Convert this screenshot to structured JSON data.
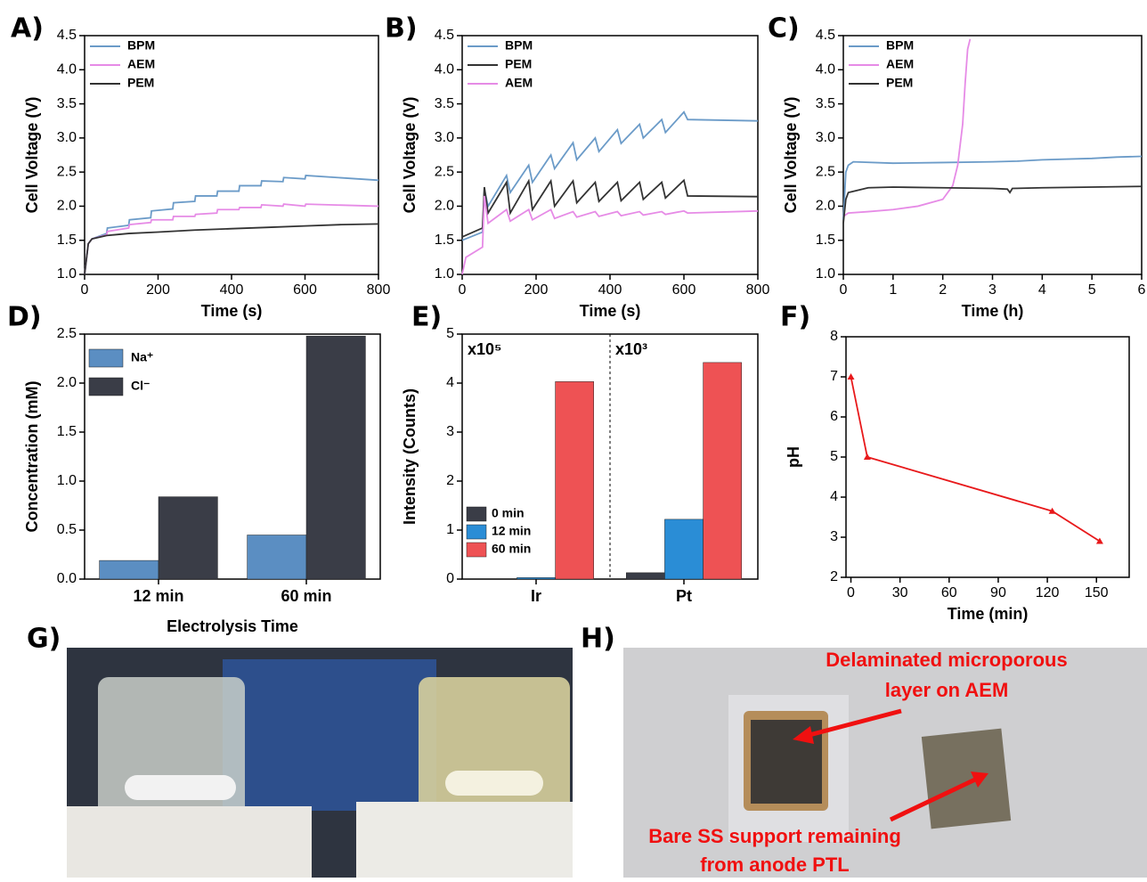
{
  "chart_data": [
    {
      "type": "line",
      "panel": "A)",
      "xlabel": "Time (s)",
      "ylabel": "Cell Voltage (V)",
      "xlim": [
        0,
        800
      ],
      "xticks": [
        0,
        200,
        400,
        600,
        800
      ],
      "ylim": [
        1.0,
        4.5
      ],
      "yticks": [
        {
          "value": 1,
          "label": "1.0"
        },
        1.5,
        {
          "value": 2,
          "label": "2.0"
        },
        2.5,
        {
          "value": 3,
          "label": "3.0"
        },
        3.5,
        {
          "value": 4,
          "label": "4.0"
        },
        4.5
      ],
      "legend": "upper left",
      "series": [
        {
          "name": "BPM",
          "color": "#6b9bc8",
          "x": [
            0,
            10,
            20,
            60,
            62,
            120,
            122,
            180,
            182,
            240,
            242,
            300,
            302,
            360,
            362,
            420,
            422,
            480,
            482,
            540,
            542,
            600,
            602,
            800
          ],
          "values": [
            1.0,
            1.45,
            1.52,
            1.6,
            1.68,
            1.72,
            1.8,
            1.83,
            1.93,
            1.96,
            2.05,
            2.07,
            2.15,
            2.15,
            2.22,
            2.22,
            2.3,
            2.3,
            2.37,
            2.36,
            2.42,
            2.4,
            2.45,
            2.38
          ]
        },
        {
          "name": "AEM",
          "color": "#e68be6",
          "x": [
            0,
            10,
            20,
            60,
            62,
            120,
            122,
            180,
            182,
            240,
            242,
            300,
            302,
            360,
            362,
            420,
            422,
            480,
            482,
            540,
            542,
            600,
            602,
            800
          ],
          "values": [
            1.0,
            1.45,
            1.52,
            1.58,
            1.63,
            1.68,
            1.73,
            1.76,
            1.8,
            1.8,
            1.85,
            1.85,
            1.88,
            1.9,
            1.95,
            1.95,
            1.98,
            1.98,
            2.02,
            2.0,
            2.03,
            2.0,
            2.03,
            2.0
          ]
        },
        {
          "name": "PEM",
          "color": "#333333",
          "x": [
            0,
            10,
            20,
            60,
            120,
            200,
            300,
            400,
            500,
            600,
            700,
            800
          ],
          "values": [
            1.0,
            1.45,
            1.52,
            1.57,
            1.6,
            1.62,
            1.65,
            1.67,
            1.69,
            1.71,
            1.73,
            1.74
          ]
        }
      ]
    },
    {
      "type": "line",
      "panel": "B)",
      "xlabel": "Time (s)",
      "ylabel": "Cell Voltage (V)",
      "xlim": [
        0,
        800
      ],
      "xticks": [
        0,
        200,
        400,
        600,
        800
      ],
      "ylim": [
        1.0,
        4.5
      ],
      "yticks": [
        {
          "value": 1,
          "label": "1.0"
        },
        1.5,
        {
          "value": 2,
          "label": "2.0"
        },
        2.5,
        {
          "value": 3,
          "label": "3.0"
        },
        3.5,
        {
          "value": 4,
          "label": "4.0"
        },
        4.5
      ],
      "legend": "upper left",
      "series": [
        {
          "name": "BPM",
          "color": "#6b9bc8",
          "x": [
            0,
            55,
            60,
            70,
            120,
            130,
            180,
            190,
            240,
            250,
            300,
            310,
            360,
            370,
            420,
            430,
            480,
            490,
            540,
            550,
            600,
            610,
            800
          ],
          "values": [
            1.5,
            1.62,
            2.25,
            2.0,
            2.45,
            2.2,
            2.6,
            2.35,
            2.75,
            2.55,
            2.93,
            2.68,
            3.0,
            2.8,
            3.12,
            2.92,
            3.2,
            3.0,
            3.27,
            3.08,
            3.38,
            3.27,
            3.25
          ]
        },
        {
          "name": "PEM",
          "color": "#333333",
          "x": [
            0,
            55,
            60,
            70,
            120,
            130,
            180,
            190,
            240,
            250,
            300,
            310,
            360,
            370,
            420,
            430,
            480,
            490,
            540,
            550,
            600,
            610,
            800
          ],
          "values": [
            1.55,
            1.68,
            2.28,
            1.9,
            2.35,
            1.9,
            2.37,
            1.95,
            2.37,
            2.0,
            2.37,
            2.05,
            2.35,
            2.07,
            2.35,
            2.08,
            2.35,
            2.1,
            2.35,
            2.12,
            2.38,
            2.15,
            2.14
          ]
        },
        {
          "name": "AEM",
          "color": "#e68be6",
          "x": [
            0,
            10,
            55,
            60,
            70,
            120,
            130,
            180,
            190,
            240,
            250,
            300,
            310,
            360,
            370,
            420,
            430,
            480,
            490,
            540,
            550,
            600,
            610,
            800
          ],
          "values": [
            1.0,
            1.25,
            1.4,
            2.15,
            1.75,
            1.95,
            1.78,
            1.95,
            1.8,
            1.95,
            1.82,
            1.92,
            1.84,
            1.92,
            1.85,
            1.92,
            1.86,
            1.92,
            1.87,
            1.92,
            1.88,
            1.93,
            1.9,
            1.93
          ]
        }
      ]
    },
    {
      "type": "line",
      "panel": "C)",
      "xlabel": "Time (h)",
      "ylabel": "Cell Voltage (V)",
      "xlim": [
        0,
        6
      ],
      "xticks": [
        0,
        1,
        2,
        3,
        4,
        5,
        6
      ],
      "ylim": [
        1.0,
        4.5
      ],
      "yticks": [
        {
          "value": 1,
          "label": "1.0"
        },
        1.5,
        {
          "value": 2,
          "label": "2.0"
        },
        2.5,
        {
          "value": 3,
          "label": "3.0"
        },
        3.5,
        {
          "value": 4,
          "label": "4.0"
        },
        4.5
      ],
      "legend": "upper left",
      "series": [
        {
          "name": "BPM",
          "color": "#6b9bc8",
          "x": [
            0,
            0.05,
            0.1,
            0.2,
            1,
            2,
            3,
            3.5,
            4,
            5,
            5.5,
            6
          ],
          "values": [
            1.8,
            2.5,
            2.6,
            2.65,
            2.63,
            2.64,
            2.65,
            2.66,
            2.68,
            2.7,
            2.72,
            2.73
          ]
        },
        {
          "name": "AEM",
          "color": "#e68be6",
          "x": [
            0,
            0.1,
            0.5,
            1,
            1.5,
            2,
            2.2,
            2.3,
            2.4,
            2.45,
            2.5,
            2.55
          ],
          "values": [
            1.85,
            1.9,
            1.92,
            1.95,
            2.0,
            2.1,
            2.3,
            2.6,
            3.2,
            3.8,
            4.3,
            4.45
          ]
        },
        {
          "name": "PEM",
          "color": "#333333",
          "x": [
            0,
            0.05,
            0.1,
            0.5,
            1,
            2,
            3,
            3.3,
            3.35,
            3.4,
            4,
            5,
            6
          ],
          "values": [
            1.75,
            2.1,
            2.2,
            2.27,
            2.28,
            2.27,
            2.26,
            2.25,
            2.2,
            2.26,
            2.27,
            2.28,
            2.29
          ]
        }
      ]
    },
    {
      "type": "bar",
      "panel": "D)",
      "xlabel": "Electrolysis Time",
      "ylabel": "Concentration (mM)",
      "categories": [
        "12 min",
        "60 min"
      ],
      "ylim": [
        0,
        2.5
      ],
      "yticks": [
        {
          "value": 0,
          "label": "0.0"
        },
        0.5,
        {
          "value": 1,
          "label": "1.0"
        },
        1.5,
        {
          "value": 2,
          "label": "2.0"
        },
        2.5
      ],
      "legend": "upper left",
      "series": [
        {
          "name": "Na⁺",
          "color": "#5b8ec2",
          "values": [
            0.19,
            0.45
          ]
        },
        {
          "name": "Cl⁻",
          "color": "#3a3d47",
          "values": [
            0.84,
            2.48
          ]
        }
      ]
    },
    {
      "type": "bar",
      "panel": "E)",
      "ylabel": "Intensity (Counts)",
      "categories": [
        "Ir",
        "Pt"
      ],
      "annotations": [
        "x10⁵",
        "x10³"
      ],
      "divider": true,
      "ylim": [
        0,
        5
      ],
      "yticks": [
        0,
        1,
        2,
        3,
        4,
        5
      ],
      "legend": "lower left",
      "series": [
        {
          "name": "0 min",
          "color": "#3a3d47",
          "values": [
            0,
            0.13
          ]
        },
        {
          "name": "12 min",
          "color": "#2a8dd6",
          "values": [
            0.03,
            1.22
          ]
        },
        {
          "name": "60 min",
          "color": "#ee5254",
          "values": [
            4.03,
            4.42
          ]
        }
      ]
    },
    {
      "type": "line",
      "panel": "F)",
      "xlabel": "Time (min)",
      "ylabel": "pH",
      "marker": "triangle",
      "xlim": [
        -3,
        170
      ],
      "xticks": [
        0,
        30,
        60,
        90,
        120,
        150
      ],
      "ylim": [
        2,
        8
      ],
      "yticks": [
        2,
        3,
        4,
        5,
        6,
        7,
        8
      ],
      "x": [
        0,
        10,
        123,
        152
      ],
      "values": [
        7.0,
        5.0,
        3.65,
        2.9
      ],
      "color": "#e8191b"
    }
  ],
  "photos": [
    {
      "panel": "G)"
    },
    {
      "panel": "H)",
      "labels": [
        [
          "Delaminated microporous",
          "layer on AEM"
        ],
        [
          "Bare SS support remaining",
          "from anode PTL"
        ]
      ]
    }
  ]
}
